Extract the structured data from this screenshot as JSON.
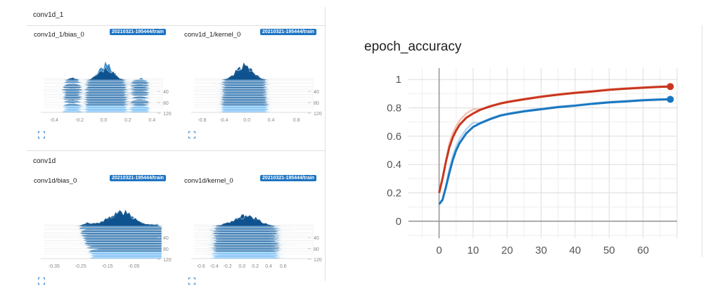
{
  "left": {
    "groups": [
      {
        "title": "conv1d_1",
        "cards": [
          {
            "title": "conv1d_1/bias_0",
            "run": "20210321-195444/train",
            "xticks": [
              "-0.4",
              "-0.2",
              "0.0",
              "0.2",
              "0.4"
            ],
            "yticks": [
              "40",
              "80",
              "120"
            ]
          },
          {
            "title": "conv1d_1/kernel_0",
            "run": "20210321-195444/train",
            "xticks": [
              "-0.8",
              "-0.4",
              "0.0",
              "0.4",
              "0.8"
            ],
            "yticks": [
              "40",
              "80",
              "120"
            ]
          }
        ]
      },
      {
        "title": "conv1d",
        "cards": [
          {
            "title": "conv1d/bias_0",
            "run": "20210321-195444/train",
            "xticks": [
              "-0.35",
              "-0.25",
              "-0.15",
              "-0.05"
            ],
            "yticks": [
              "40",
              "80",
              "120"
            ]
          },
          {
            "title": "conv1d/kernel_0",
            "run": "20210321-195444/train",
            "xticks": [
              "-0.6",
              "-0.4",
              "-0.2",
              "0.0",
              "0.2",
              "0.4",
              "0.6"
            ],
            "yticks": [
              "40",
              "80",
              "120"
            ]
          }
        ]
      }
    ]
  },
  "icons": {
    "expand": "expand-icon"
  },
  "colors": {
    "hist_dark": "#0b4f8a",
    "hist_light": "#64b5f6",
    "badge": "#1e74c2",
    "train": "#c9361e",
    "train_smoothed_shadow": "#f3c3b6",
    "validation": "#1977c1",
    "validation_shadow": "#b8d6ee"
  },
  "chart_data": {
    "type": "line",
    "title": "epoch_accuracy",
    "xlabel": "",
    "ylabel": "",
    "xlim": [
      -9,
      70
    ],
    "ylim": [
      -0.12,
      1.08
    ],
    "xticks": [
      0,
      10,
      20,
      30,
      40,
      50,
      60
    ],
    "yticks": [
      0,
      0.2,
      0.4,
      0.6,
      0.8,
      1
    ],
    "grid": true,
    "series": [
      {
        "color": "#c9361e",
        "x": [
          0,
          1,
          2,
          3,
          4,
          5,
          6,
          8,
          10,
          12,
          15,
          18,
          20,
          25,
          30,
          35,
          40,
          45,
          50,
          55,
          60,
          65,
          68
        ],
        "y": [
          0.2,
          0.3,
          0.42,
          0.52,
          0.59,
          0.64,
          0.68,
          0.73,
          0.76,
          0.785,
          0.81,
          0.83,
          0.84,
          0.86,
          0.878,
          0.893,
          0.905,
          0.915,
          0.927,
          0.935,
          0.942,
          0.948,
          0.95
        ]
      },
      {
        "color": "#1977c1",
        "x": [
          0,
          1,
          2,
          3,
          4,
          5,
          6,
          8,
          10,
          12,
          15,
          18,
          20,
          25,
          30,
          35,
          40,
          45,
          50,
          55,
          60,
          65,
          68
        ],
        "y": [
          0.12,
          0.15,
          0.24,
          0.34,
          0.43,
          0.5,
          0.55,
          0.62,
          0.665,
          0.69,
          0.72,
          0.745,
          0.755,
          0.775,
          0.79,
          0.805,
          0.815,
          0.828,
          0.838,
          0.845,
          0.853,
          0.858,
          0.86
        ]
      }
    ]
  }
}
